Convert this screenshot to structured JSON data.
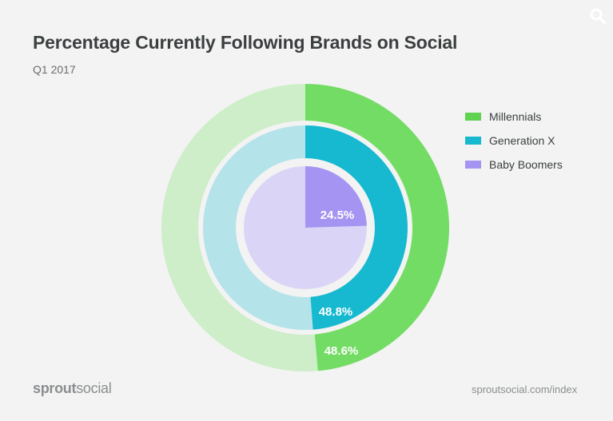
{
  "header": {
    "title": "Percentage Currently Following Brands on Social",
    "subtitle": "Q1 2017"
  },
  "icons": {
    "search": "search-icon"
  },
  "footer": {
    "brand_part1": "sprout",
    "brand_part2": "social",
    "source": "sproutsocial.com/index"
  },
  "colors": {
    "background": "#f3f3f3",
    "millennials": "#73dc64",
    "millennials_track": "#cdeec8",
    "genx": "#16b9cf",
    "genx_track": "#b5e3ea",
    "boomers": "#a694f2",
    "boomers_track": "#dad5f6"
  },
  "chart_data": {
    "type": "pie",
    "subtype": "nested-radial-progress",
    "title": "Percentage Currently Following Brands on Social",
    "subtitle": "Q1 2017",
    "unit": "%",
    "legend_position": "right",
    "series": [
      {
        "name": "Millennials",
        "value": 48.6,
        "label": "48.6%"
      },
      {
        "name": "Generation X",
        "value": 48.8,
        "label": "48.8%"
      },
      {
        "name": "Baby Boomers",
        "value": 24.5,
        "label": "24.5%"
      }
    ]
  }
}
